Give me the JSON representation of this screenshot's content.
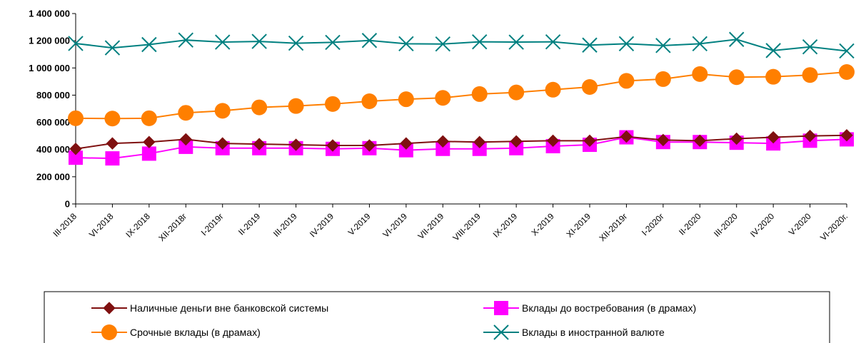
{
  "chart_data": {
    "type": "line",
    "categories": [
      "III-2018",
      "VI-2018",
      "IX-2018",
      "XII-2018г",
      "I-2019г",
      "II-2019",
      "III-2019",
      "IV-2019",
      "V-2019",
      "VI-2019",
      "VII-2019",
      "VIII-2019",
      "IX-2019",
      "X-2019",
      "XI-2019",
      "XII-2019г",
      "I-2020г",
      "II-2020",
      "III-2020",
      "IV-2020",
      "V-2020",
      "VI-2020г."
    ],
    "ylim": [
      0,
      1400000
    ],
    "yticks": [
      0,
      200000,
      400000,
      600000,
      800000,
      1000000,
      1200000,
      1400000
    ],
    "ytick_labels": [
      "0",
      "200 000",
      "400 000",
      "600 000",
      "800 000",
      "1 000 000",
      "1 200 000",
      "1 400 000"
    ],
    "grid": false,
    "legend_position": "bottom",
    "series": [
      {
        "name": "Наличные деньги вне банковской системы",
        "color": "#7f1010",
        "marker": "diamond",
        "values": [
          405000,
          445000,
          455000,
          475000,
          445000,
          440000,
          435000,
          430000,
          430000,
          445000,
          460000,
          455000,
          460000,
          465000,
          465000,
          495000,
          470000,
          465000,
          480000,
          490000,
          500000,
          505000
        ]
      },
      {
        "name": "Вклады до востребования (в драмах)",
        "color": "#ff00ff",
        "marker": "square",
        "values": [
          340000,
          335000,
          370000,
          420000,
          410000,
          410000,
          410000,
          405000,
          410000,
          395000,
          405000,
          405000,
          410000,
          425000,
          435000,
          490000,
          455000,
          455000,
          450000,
          445000,
          465000,
          475000
        ]
      },
      {
        "name": "Срочные вклады (в драмах)",
        "color": "#ff7f00",
        "marker": "circle",
        "values": [
          630000,
          628000,
          630000,
          670000,
          685000,
          710000,
          720000,
          735000,
          755000,
          770000,
          780000,
          808000,
          820000,
          840000,
          860000,
          905000,
          918000,
          955000,
          932000,
          935000,
          948000,
          970000
        ]
      },
      {
        "name": "Вклады в иностранной валюте",
        "color": "#008080",
        "marker": "x",
        "values": [
          1180000,
          1148000,
          1172000,
          1205000,
          1190000,
          1195000,
          1182000,
          1188000,
          1202000,
          1178000,
          1176000,
          1192000,
          1190000,
          1192000,
          1168000,
          1178000,
          1165000,
          1178000,
          1210000,
          1128000,
          1155000,
          1125000
        ]
      }
    ]
  }
}
